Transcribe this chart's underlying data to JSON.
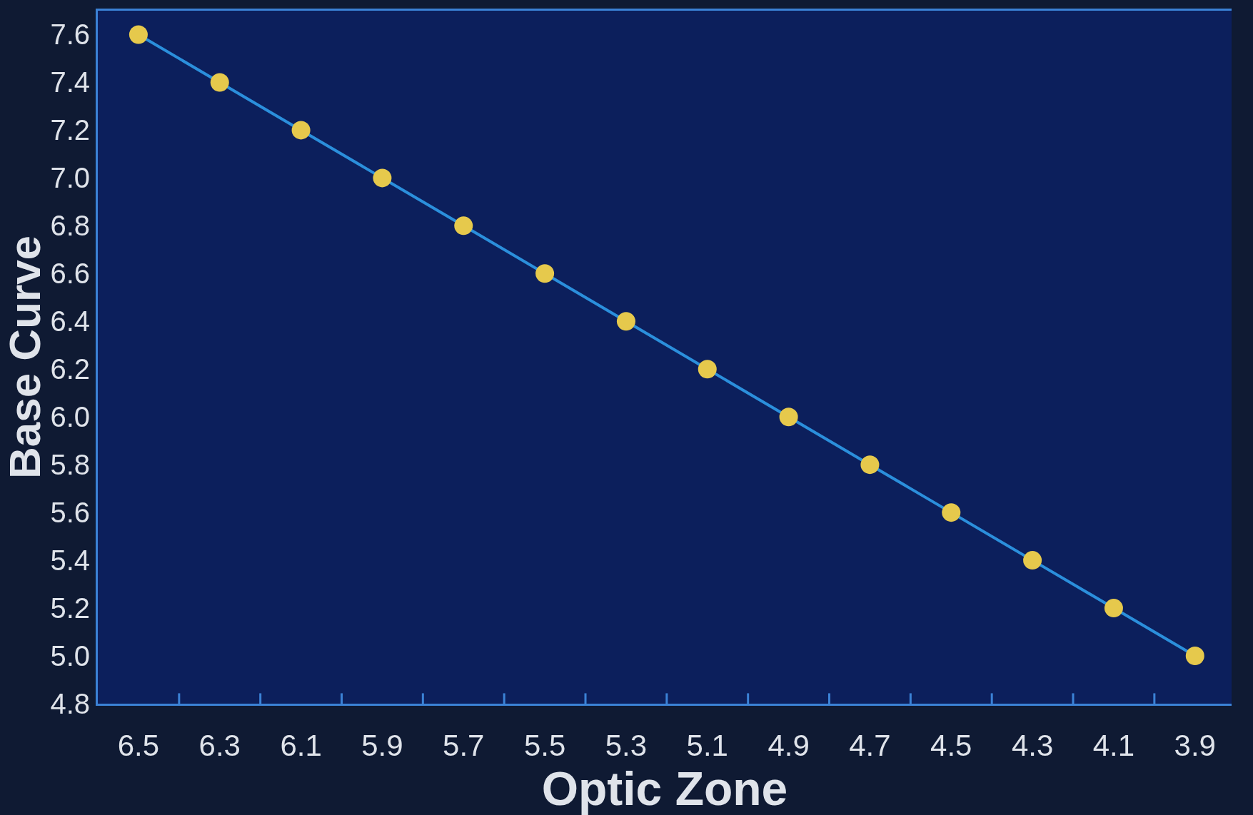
{
  "chart_data": {
    "type": "line",
    "xlabel": "Optic Zone",
    "ylabel": "Base Curve",
    "categories": [
      "6.5",
      "6.3",
      "6.1",
      "5.9",
      "5.7",
      "5.5",
      "5.3",
      "5.1",
      "4.9",
      "4.7",
      "4.5",
      "4.3",
      "4.1",
      "3.9"
    ],
    "series": [
      {
        "color": "#e6c94c",
        "values": [
          7.6,
          7.4,
          7.2,
          7.0,
          6.8,
          6.6,
          6.4,
          6.2,
          6.0,
          5.8,
          5.6,
          5.4,
          5.2,
          5.0
        ]
      }
    ],
    "marker": "circle",
    "line_style": "solid",
    "ylim": [
      4.8,
      7.7
    ],
    "yticks": [
      4.8,
      {
        "value": 5,
        "label": "5.0"
      },
      5.2,
      5.4,
      5.6,
      5.8,
      {
        "value": 6,
        "label": "6.0"
      },
      6.2,
      6.4,
      6.6,
      6.8,
      {
        "value": 7,
        "label": "7.0"
      },
      7.2,
      7.4,
      7.6
    ]
  }
}
